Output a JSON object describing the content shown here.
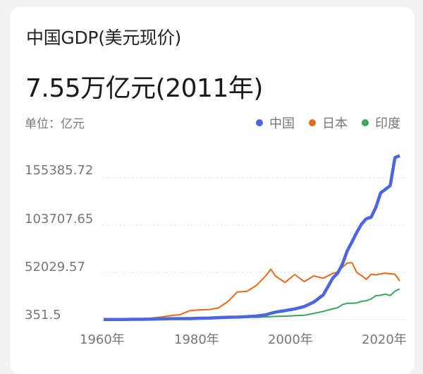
{
  "header": {
    "title": "中国GDP(美元现价)",
    "value": "7.55万亿元(2011年)",
    "unit": "单位：亿元"
  },
  "legend": [
    {
      "label": "中国",
      "color": "#4a66e0"
    },
    {
      "label": "日本",
      "color": "#e46b1d"
    },
    {
      "label": "印度",
      "color": "#3aa85a"
    }
  ],
  "y_ticks": [
    "155385.72",
    "103707.65",
    "52029.57",
    "351.5"
  ],
  "x_ticks": [
    "1960年",
    "1980年",
    "2000年",
    "2020年"
  ],
  "chart_data": {
    "type": "line",
    "title": "中国GDP(美元现价)",
    "subtitle": "7.55万亿元(2011年)",
    "ylabel": "单位：亿元",
    "xlabel": "",
    "ylim": [
      351.5,
      155385.72
    ],
    "y_ticks": [
      351.5,
      52029.57,
      103707.65,
      155385.72
    ],
    "x_ticks": [
      "1960年",
      "1980年",
      "2000年",
      "2020年"
    ],
    "legend_position": "top-right",
    "grid": "horizontal dashed",
    "x": [
      1960,
      1962,
      1964,
      1966,
      1968,
      1970,
      1972,
      1974,
      1976,
      1978,
      1980,
      1982,
      1984,
      1986,
      1988,
      1990,
      1992,
      1994,
      1995,
      1996,
      1998,
      2000,
      2002,
      2004,
      2006,
      2008,
      2009,
      2010,
      2011,
      2012,
      2013,
      2014,
      2015,
      2016,
      2017,
      2018,
      2019,
      2020,
      2021,
      2022
    ],
    "series": [
      {
        "name": "中国",
        "color": "#4a66e0",
        "values": [
          600,
          500,
          600,
          750,
          700,
          920,
          1140,
          1440,
          1540,
          1500,
          1910,
          2050,
          2600,
          3000,
          3100,
          3610,
          4270,
          5640,
          7340,
          8600,
          10290,
          12110,
          14710,
          19550,
          27520,
          46040,
          51170,
          61040,
          75500,
          85320,
          95700,
          104760,
          110620,
          112330,
          123100,
          138950,
          142800,
          146870,
          177340,
          179630
        ]
      },
      {
        "name": "日本",
        "color": "#e46b1d",
        "values": [
          440,
          600,
          810,
          1130,
          1500,
          2120,
          3180,
          4700,
          5800,
          10100,
          11050,
          11340,
          13040,
          20000,
          30700,
          31300,
          37800,
          48500,
          55400,
          47900,
          41100,
          49700,
          41900,
          48200,
          45600,
          51000,
          52300,
          57600,
          62300,
          62700,
          52100,
          48500,
          44400,
          50000,
          49300,
          50400,
          51200,
          50500,
          50000,
          42600
        ]
      },
      {
        "name": "印度",
        "color": "#3aa85a",
        "values": [
          370,
          430,
          560,
          460,
          530,
          620,
          710,
          990,
          980,
          1370,
          1860,
          2010,
          2140,
          2480,
          2970,
          3210,
          2880,
          3330,
          3600,
          3920,
          4210,
          4680,
          5140,
          7210,
          9400,
          12240,
          13420,
          16760,
          18230,
          18280,
          18570,
          20390,
          21040,
          22950,
          26510,
          27020,
          28350,
          26680,
          31500,
          33900
        ]
      }
    ]
  }
}
